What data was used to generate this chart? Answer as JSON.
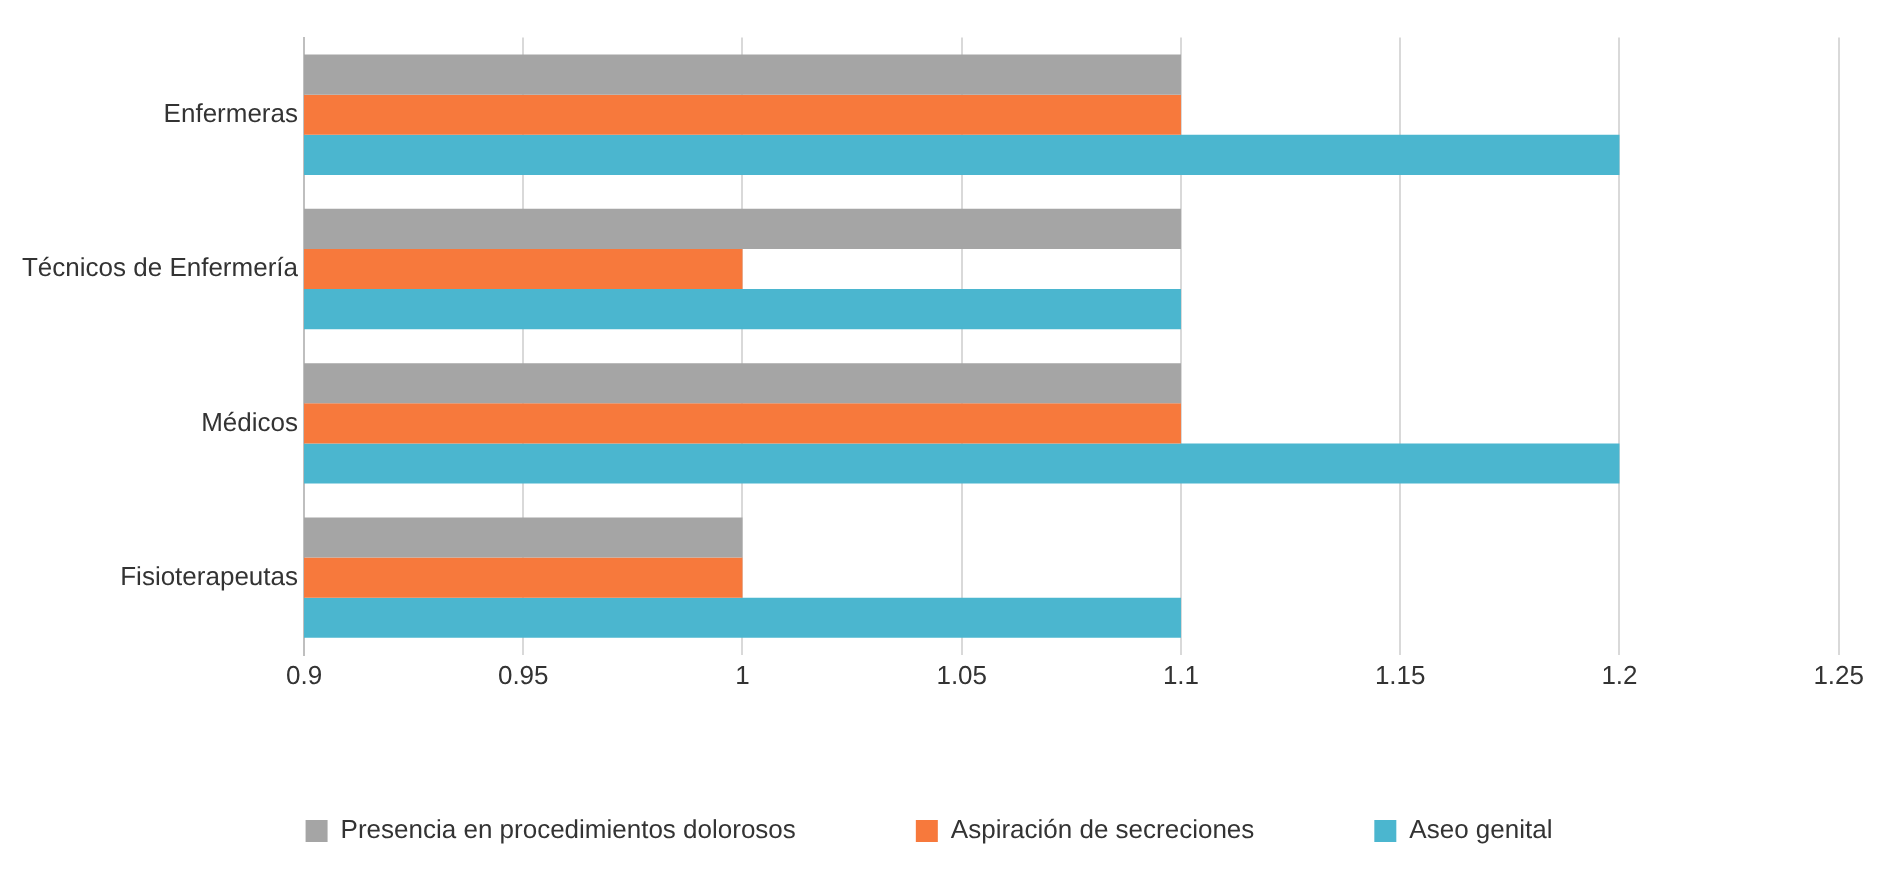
{
  "chart_data": {
    "type": "bar",
    "orientation": "horizontal",
    "categories": [
      "Enfermeras",
      "Técnicos de Enfermería",
      "Médicos",
      "Fisioterapeutas"
    ],
    "series": [
      {
        "name": "Presencia en procedimientos dolorosos",
        "color": "#a5a5a5",
        "values": [
          1.1,
          1.1,
          1.1,
          1.0
        ]
      },
      {
        "name": "Aspiración de secreciones",
        "color": "#f7793c",
        "values": [
          1.1,
          1.0,
          1.1,
          1.0
        ]
      },
      {
        "name": "Aseo genital",
        "color": "#4bb6cf",
        "values": [
          1.2,
          1.1,
          1.2,
          1.1
        ]
      }
    ],
    "xlim": [
      0.9,
      1.25
    ],
    "xticks": [
      0.9,
      0.95,
      1,
      1.05,
      1.1,
      1.15,
      1.2,
      1.25
    ],
    "grid": "x",
    "legend": "bottom"
  }
}
